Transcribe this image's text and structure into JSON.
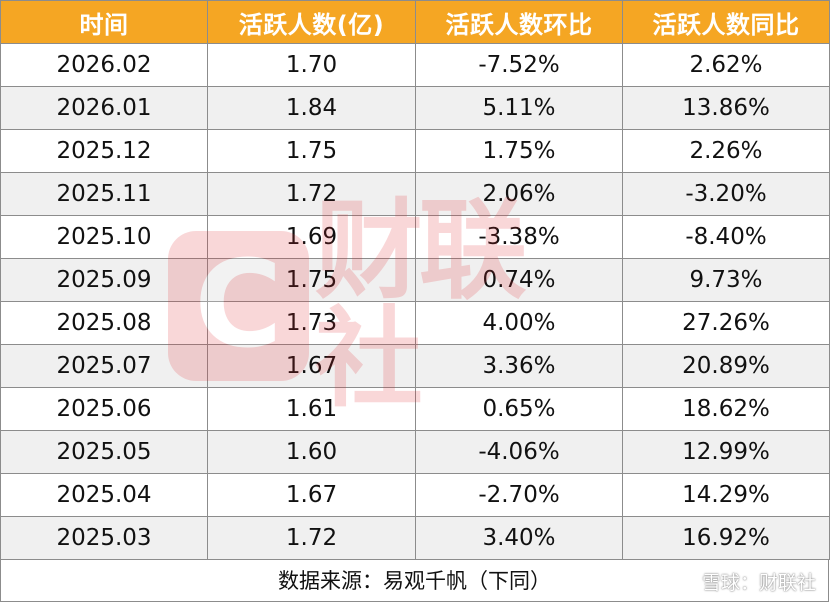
{
  "table": {
    "headers": [
      "时间",
      "活跃人数(亿)",
      "活跃人数环比",
      "活跃人数同比"
    ],
    "rows": [
      [
        "2026.02",
        "1.70",
        "-7.52%",
        "2.62%"
      ],
      [
        "2026.01",
        "1.84",
        "5.11%",
        "13.86%"
      ],
      [
        "2025.12",
        "1.75",
        "1.75%",
        "2.26%"
      ],
      [
        "2025.11",
        "1.72",
        "2.06%",
        "-3.20%"
      ],
      [
        "2025.10",
        "1.69",
        "-3.38%",
        "-8.40%"
      ],
      [
        "2025.09",
        "1.75",
        "0.74%",
        "9.73%"
      ],
      [
        "2025.08",
        "1.73",
        "4.00%",
        "27.26%"
      ],
      [
        "2025.07",
        "1.67",
        "3.36%",
        "20.89%"
      ],
      [
        "2025.06",
        "1.61",
        "0.65%",
        "18.62%"
      ],
      [
        "2025.05",
        "1.60",
        "-4.06%",
        "12.99%"
      ],
      [
        "2025.04",
        "1.67",
        "-2.70%",
        "14.29%"
      ],
      [
        "2025.03",
        "1.72",
        "3.40%",
        "16.92%"
      ]
    ]
  },
  "footer": {
    "source": "数据来源：易观千帆（下同）"
  },
  "watermark": {
    "logo_letter": "C",
    "brand": "财联社"
  },
  "snowball_mark": {
    "text": "雪球：财联社"
  },
  "colors": {
    "header_bg": "#f5a623",
    "header_text": "#ffffff",
    "stripe": "#ebebeb",
    "watermark": "#e0282e"
  }
}
